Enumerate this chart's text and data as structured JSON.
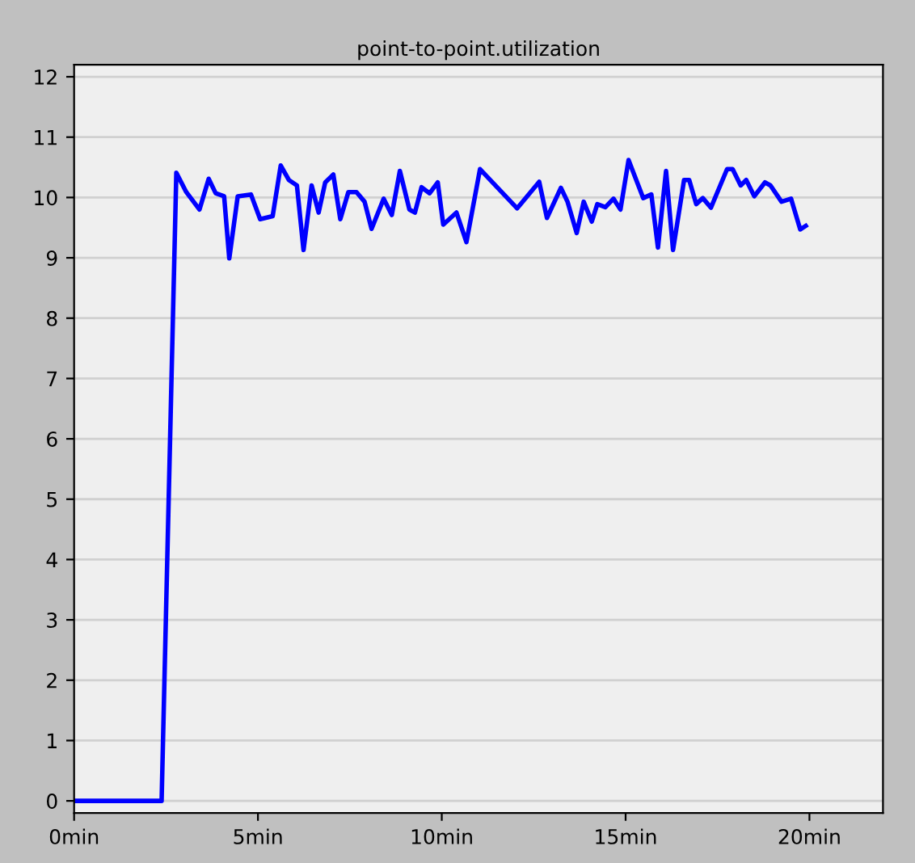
{
  "chart_data": {
    "type": "line",
    "title": "point-to-point.utilization",
    "x": [
      0,
      2.38,
      2.78,
      3.05,
      3.41,
      3.66,
      3.85,
      4.08,
      4.22,
      4.45,
      4.81,
      5.06,
      5.4,
      5.62,
      5.84,
      6.06,
      6.24,
      6.46,
      6.65,
      6.83,
      7.05,
      7.24,
      7.46,
      7.68,
      7.9,
      8.09,
      8.42,
      8.64,
      8.86,
      9.12,
      9.27,
      9.45,
      9.67,
      9.89,
      10.04,
      10.4,
      10.67,
      11.04,
      12.05,
      12.65,
      12.86,
      13.24,
      13.42,
      13.67,
      13.86,
      14.08,
      14.23,
      14.45,
      14.67,
      14.86,
      15.08,
      15.48,
      15.7,
      15.88,
      16.1,
      16.29,
      16.59,
      16.73,
      16.92,
      17.1,
      17.32,
      17.76,
      17.91,
      18.13,
      18.28,
      18.5,
      18.79,
      18.94,
      19.24,
      19.5,
      19.75,
      19.9
    ],
    "series": [
      {
        "color": "#0000ff",
        "values": [
          0,
          0,
          10.41,
          10.09,
          9.8,
          10.31,
          10.07,
          10.02,
          8.99,
          10.02,
          10.05,
          9.64,
          9.69,
          10.53,
          10.29,
          10.2,
          9.13,
          10.2,
          9.75,
          10.25,
          10.38,
          9.64,
          10.09,
          10.09,
          9.93,
          9.48,
          9.98,
          9.71,
          10.44,
          9.8,
          9.75,
          10.17,
          10.07,
          10.25,
          9.55,
          9.75,
          9.26,
          10.47,
          9.82,
          10.26,
          9.66,
          10.16,
          9.93,
          9.41,
          9.93,
          9.6,
          9.89,
          9.84,
          9.98,
          9.8,
          10.62,
          9.99,
          10.05,
          9.17,
          10.44,
          9.13,
          10.29,
          10.29,
          9.89,
          9.99,
          9.83,
          10.47,
          10.47,
          10.2,
          10.29,
          10.02,
          10.25,
          10.2,
          9.93,
          9.98,
          9.47,
          9.53
        ]
      }
    ],
    "xlim": [
      0,
      22
    ],
    "xticks": [
      {
        "value": 0,
        "label": "0min"
      },
      {
        "value": 5,
        "label": "5min"
      },
      {
        "value": 10,
        "label": "10min"
      },
      {
        "value": 15,
        "label": "15min"
      },
      {
        "value": 20,
        "label": "20min"
      }
    ],
    "ylim": [
      -0.2,
      12.2
    ],
    "yticks": [
      0,
      1,
      2,
      3,
      4,
      5,
      6,
      7,
      8,
      9,
      10,
      11,
      12
    ],
    "grid": "y",
    "legend": false,
    "marker": "none",
    "line_style": "solid"
  }
}
